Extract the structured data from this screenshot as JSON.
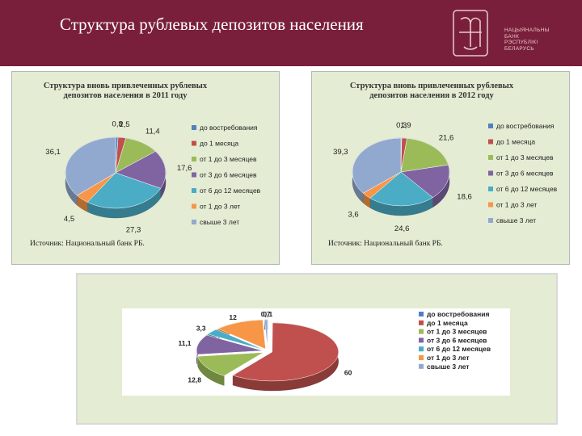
{
  "header": {
    "title": "Структура рублевых депозитов населения",
    "bg_color": "#7a1f3b",
    "logo_text": [
      "НАЦЫЯНАЛЬНЫ",
      "БАНК",
      "РЭСПУБЛІКІ",
      "БЕЛАРУСЬ"
    ]
  },
  "chart_data": [
    {
      "type": "pie",
      "title": "Структура вновь привлеченных рублевых депозитов населения в 2011 году",
      "title_lines": [
        "Структура вновь привлеченных рублевых",
        "депозитов населения в 2011 году"
      ],
      "categories": [
        "до востребования",
        "до 1 месяца",
        "от 1 до 3 месяцев",
        "от 3 до 6 месяцев",
        "от 6 до 12 месяцев",
        "от 1 до 3 лет",
        "свыше 3 лет"
      ],
      "values": [
        0.8,
        2.5,
        11.4,
        17.6,
        27.3,
        4.5,
        36.1
      ],
      "labels": [
        "0,8",
        "2,5",
        "11,4",
        "17,6",
        "27,3",
        "4,5",
        "36,1"
      ],
      "legend": [
        "до востребования",
        "до 1 месяца",
        "от 1 до 3 месяцев",
        "от 3 до 6 месяцев",
        "от 6 до 12 месяцев",
        "от 1 до 3 лет",
        "свыше 3 лет"
      ],
      "legend_position": "right",
      "source": "Источник: Национальный банк РБ."
    },
    {
      "type": "pie",
      "title": "Структура вновь привлеченных рублевых депозитов населения в 2012 году",
      "title_lines": [
        "Структура вновь привлеченных рублевых",
        "депозитов населения в 2012 году"
      ],
      "categories": [
        "до востребования",
        "до 1 месяца",
        "от 1 до 3 месяцев",
        "от 3 до 6 месяцев",
        "от 6 до 12 месяцев",
        "от 1 до 3 лет",
        "свыше 3 лет"
      ],
      "values": [
        0.3,
        1.9,
        21.6,
        18.6,
        24.6,
        3.6,
        39.3
      ],
      "labels": [
        "0,3",
        "1,9",
        "21,6",
        "18,6",
        "24,6",
        "3,6",
        "39,3"
      ],
      "legend": [
        "до востребования",
        "до 1 месяца",
        "от 1 до 3 месяцев",
        "от 3 до 6 месяцев",
        "от 6 до 12 месяцев",
        "от 1 до 3 лет",
        "свыше 3 лет"
      ],
      "legend_position": "right",
      "source": "Источник: Национальный банк РБ."
    },
    {
      "type": "pie",
      "title": "",
      "categories": [
        "до востребования",
        "до 1 месяца",
        "от 1 до 3 месяцев",
        "от 3 до 6 месяцев",
        "от 6 до 12 месяцев",
        "от 1 до 3 лет",
        "свыше 3 лет"
      ],
      "values": [
        0.1,
        60,
        12.8,
        11.1,
        3.3,
        12,
        0.7
      ],
      "labels": [
        "0,1",
        "60",
        "12,8",
        "11,1",
        "3,3",
        "12",
        "0,7"
      ],
      "legend": [
        "до востребования",
        "до 1 месяца",
        "от 1 до 3 месяцев",
        "от 3 до 6 месяцев",
        "от 6 до 12 месяцев",
        "от 1 до 3 лет",
        "свыше 3 лет"
      ],
      "legend_position": "right"
    }
  ],
  "colors": [
    "#4f81bd",
    "#c0504d",
    "#9bbb59",
    "#8064a2",
    "#4bacc6",
    "#f79646",
    "#92a9cf"
  ]
}
